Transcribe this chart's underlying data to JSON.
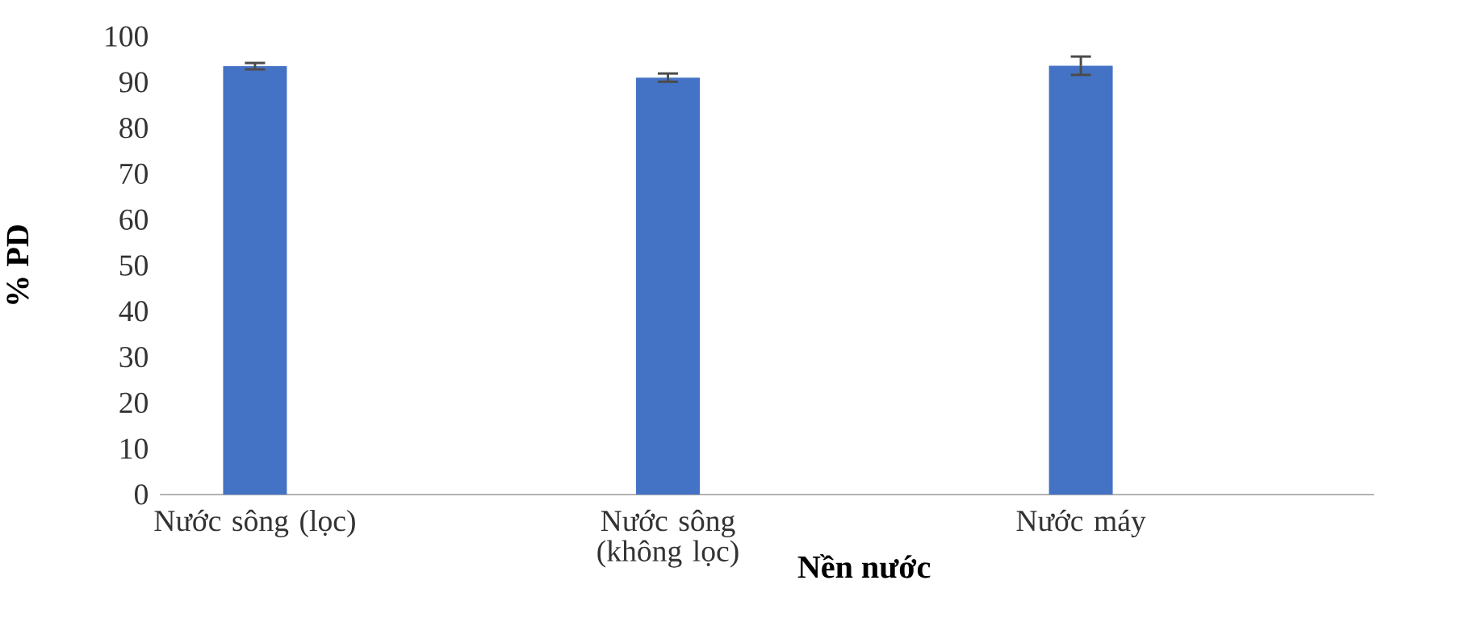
{
  "chart_data": {
    "type": "bar",
    "xlabel": "Nền nước",
    "ylabel": "% PD",
    "categories": [
      "Nước sông (lọc)",
      "Nước sông (không lọc)",
      "Nước máy"
    ],
    "values": [
      93.5,
      91.0,
      93.6
    ],
    "errors": [
      0.7,
      0.9,
      2.0
    ],
    "color": "#4472c4",
    "ylim": [
      0,
      100
    ],
    "yticks": [
      0,
      10,
      20,
      30,
      40,
      50,
      60,
      70,
      80,
      90,
      100
    ]
  }
}
